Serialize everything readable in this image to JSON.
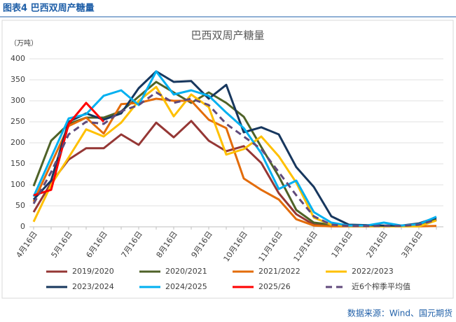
{
  "header": {
    "title": "图表4  巴西双周产糖量"
  },
  "source": "数据来源：Wind、国元期货",
  "chart_data": {
    "type": "line",
    "title": "巴西双周产糖量",
    "y_unit": "（万吨）",
    "categories": [
      "4月16日",
      null,
      "5月16日",
      null,
      "6月16日",
      null,
      "7月16日",
      null,
      "8月16日",
      null,
      "9月16日",
      null,
      "10月16日",
      null,
      "11月16日",
      null,
      "12月16日",
      null,
      "1月16日",
      null,
      "2月16日",
      null,
      "3月16日",
      null
    ],
    "ylim": [
      0,
      400
    ],
    "yticks": [
      0,
      50,
      100,
      150,
      200,
      250,
      300,
      350,
      400
    ],
    "grid": true,
    "series": [
      {
        "name": "2019/2020",
        "color": "#953735",
        "values": [
          35,
          105,
          160,
          187,
          187,
          220,
          195,
          248,
          213,
          252,
          205,
          180,
          192,
          152,
          80,
          30,
          5,
          2,
          2,
          2,
          2,
          2,
          5,
          18
        ]
      },
      {
        "name": "2020/2021",
        "color": "#4f6228",
        "values": [
          97,
          205,
          245,
          260,
          260,
          275,
          310,
          345,
          320,
          295,
          320,
          295,
          262,
          190,
          120,
          40,
          10,
          5,
          3,
          2,
          2,
          2,
          5,
          18
        ]
      },
      {
        "name": "2021/2022",
        "color": "#e36c0a",
        "values": [
          60,
          150,
          240,
          260,
          222,
          292,
          295,
          305,
          300,
          300,
          255,
          235,
          115,
          88,
          65,
          18,
          3,
          1,
          1,
          1,
          1,
          1,
          1,
          2
        ]
      },
      {
        "name": "2022/2023",
        "color": "#ffc000",
        "values": [
          12,
          100,
          165,
          232,
          215,
          248,
          300,
          333,
          263,
          315,
          285,
          172,
          185,
          215,
          168,
          105,
          22,
          5,
          2,
          2,
          1,
          1,
          1,
          15
        ]
      },
      {
        "name": "2023/2024",
        "color": "#17375e",
        "values": [
          65,
          110,
          250,
          270,
          255,
          270,
          330,
          370,
          345,
          347,
          305,
          338,
          225,
          237,
          220,
          142,
          95,
          25,
          5,
          4,
          3,
          3,
          8,
          22
        ]
      },
      {
        "name": "2024/2025",
        "color": "#00b0f0",
        "values": [
          72,
          165,
          258,
          268,
          312,
          325,
          290,
          370,
          315,
          325,
          312,
          272,
          235,
          175,
          90,
          110,
          35,
          10,
          3,
          3,
          10,
          3,
          6,
          24
        ]
      },
      {
        "name": "2025/26",
        "color": "#ff0000",
        "values": [
          75,
          88,
          245,
          295,
          250,
          null,
          null,
          null,
          null,
          null,
          null,
          null,
          null,
          null,
          null,
          null,
          null,
          null,
          null,
          null,
          null,
          null,
          null,
          null
        ]
      },
      {
        "name": "近6个榨季平均值",
        "color": "#604a7b",
        "dashed": true,
        "values": [
          55,
          130,
          220,
          250,
          245,
          275,
          290,
          320,
          295,
          305,
          290,
          245,
          215,
          185,
          130,
          75,
          25,
          5,
          2,
          2,
          2,
          2,
          5,
          17
        ]
      }
    ]
  }
}
